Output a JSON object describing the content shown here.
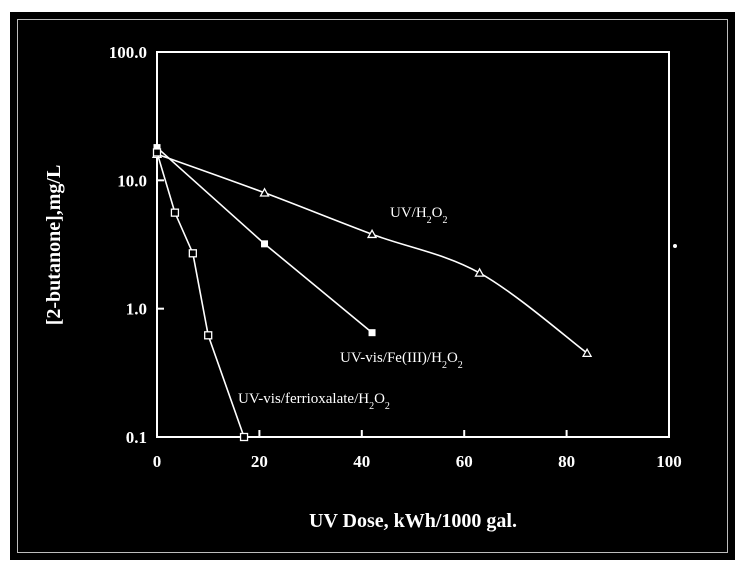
{
  "colors": {
    "background": "#000000",
    "foreground": "#ffffff",
    "frame": "#bdbdbd"
  },
  "chart_data": {
    "type": "line",
    "title": "",
    "xlabel": "UV Dose, kWh/1000 gal.",
    "ylabel": "[2-butanone],mg/L",
    "xlim": [
      0,
      100
    ],
    "ylim": [
      0.1,
      100
    ],
    "yscale": "log",
    "grid": false,
    "legend": "none",
    "x_ticks": [
      {
        "value": 0,
        "label": "0"
      },
      {
        "value": 20,
        "label": "20"
      },
      {
        "value": 40,
        "label": "40"
      },
      {
        "value": 60,
        "label": "60"
      },
      {
        "value": 80,
        "label": "80"
      },
      {
        "value": 100,
        "label": "100"
      }
    ],
    "y_ticks": [
      {
        "value": 0.1,
        "label": "0.1"
      },
      {
        "value": 1,
        "label": "1.0"
      },
      {
        "value": 10,
        "label": "10.0"
      },
      {
        "value": 100,
        "label": "100.0"
      }
    ],
    "series": [
      {
        "name": "UV/H2O2",
        "label_parts": [
          "UV/H",
          "2",
          "O",
          "2"
        ],
        "marker": "triangle-open",
        "smooth": true,
        "points": [
          [
            0,
            16.0
          ],
          [
            21,
            8.0
          ],
          [
            42,
            3.8
          ],
          [
            63,
            1.9
          ],
          [
            84,
            0.45
          ]
        ]
      },
      {
        "name": "UV-vis/Fe(III)/H2O2",
        "label_parts": [
          "UV-vis/Fe(III)/H",
          "2",
          "O",
          "2"
        ],
        "marker": "square-filled",
        "smooth": false,
        "points": [
          [
            0,
            18.0
          ],
          [
            21,
            3.2
          ],
          [
            42,
            0.65
          ]
        ]
      },
      {
        "name": "UV-vis/ferrioxalate/H2O2",
        "label_parts": [
          "UV-vis/ferrioxalate/H",
          "2",
          "O",
          "2"
        ],
        "marker": "square-open",
        "smooth": false,
        "points": [
          [
            0,
            16.5
          ],
          [
            3.5,
            5.6
          ],
          [
            7,
            2.7
          ],
          [
            10,
            0.62
          ],
          [
            17,
            0.1
          ]
        ]
      }
    ]
  }
}
